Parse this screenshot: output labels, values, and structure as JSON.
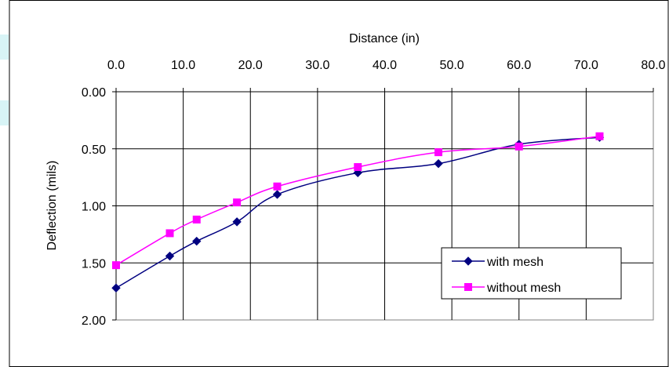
{
  "chart_data": {
    "type": "line",
    "xlabel": "Distance (in)",
    "ylabel": "Deflection (mils)",
    "xlim": [
      0,
      80
    ],
    "ylim": [
      0,
      2
    ],
    "y_reversed": true,
    "x_axis_position": "top",
    "x_ticks": [
      "0.0",
      "10.0",
      "20.0",
      "30.0",
      "40.0",
      "50.0",
      "60.0",
      "70.0",
      "80.0"
    ],
    "y_ticks": [
      "0.00",
      "0.50",
      "1.00",
      "1.50",
      "2.00"
    ],
    "grid": true,
    "legend_position": "lower-right",
    "series": [
      {
        "name": "with mesh",
        "color": "#000080",
        "marker": "diamond",
        "x": [
          0,
          8,
          12,
          18,
          24,
          36,
          48,
          60,
          72
        ],
        "y": [
          1.72,
          1.44,
          1.31,
          1.14,
          0.9,
          0.71,
          0.63,
          0.46,
          0.4
        ]
      },
      {
        "name": "without mesh",
        "color": "#ff00ff",
        "marker": "square",
        "x": [
          0,
          8,
          12,
          18,
          24,
          36,
          48,
          60,
          72
        ],
        "y": [
          1.52,
          1.24,
          1.12,
          0.97,
          0.83,
          0.66,
          0.53,
          0.48,
          0.39
        ]
      }
    ]
  }
}
